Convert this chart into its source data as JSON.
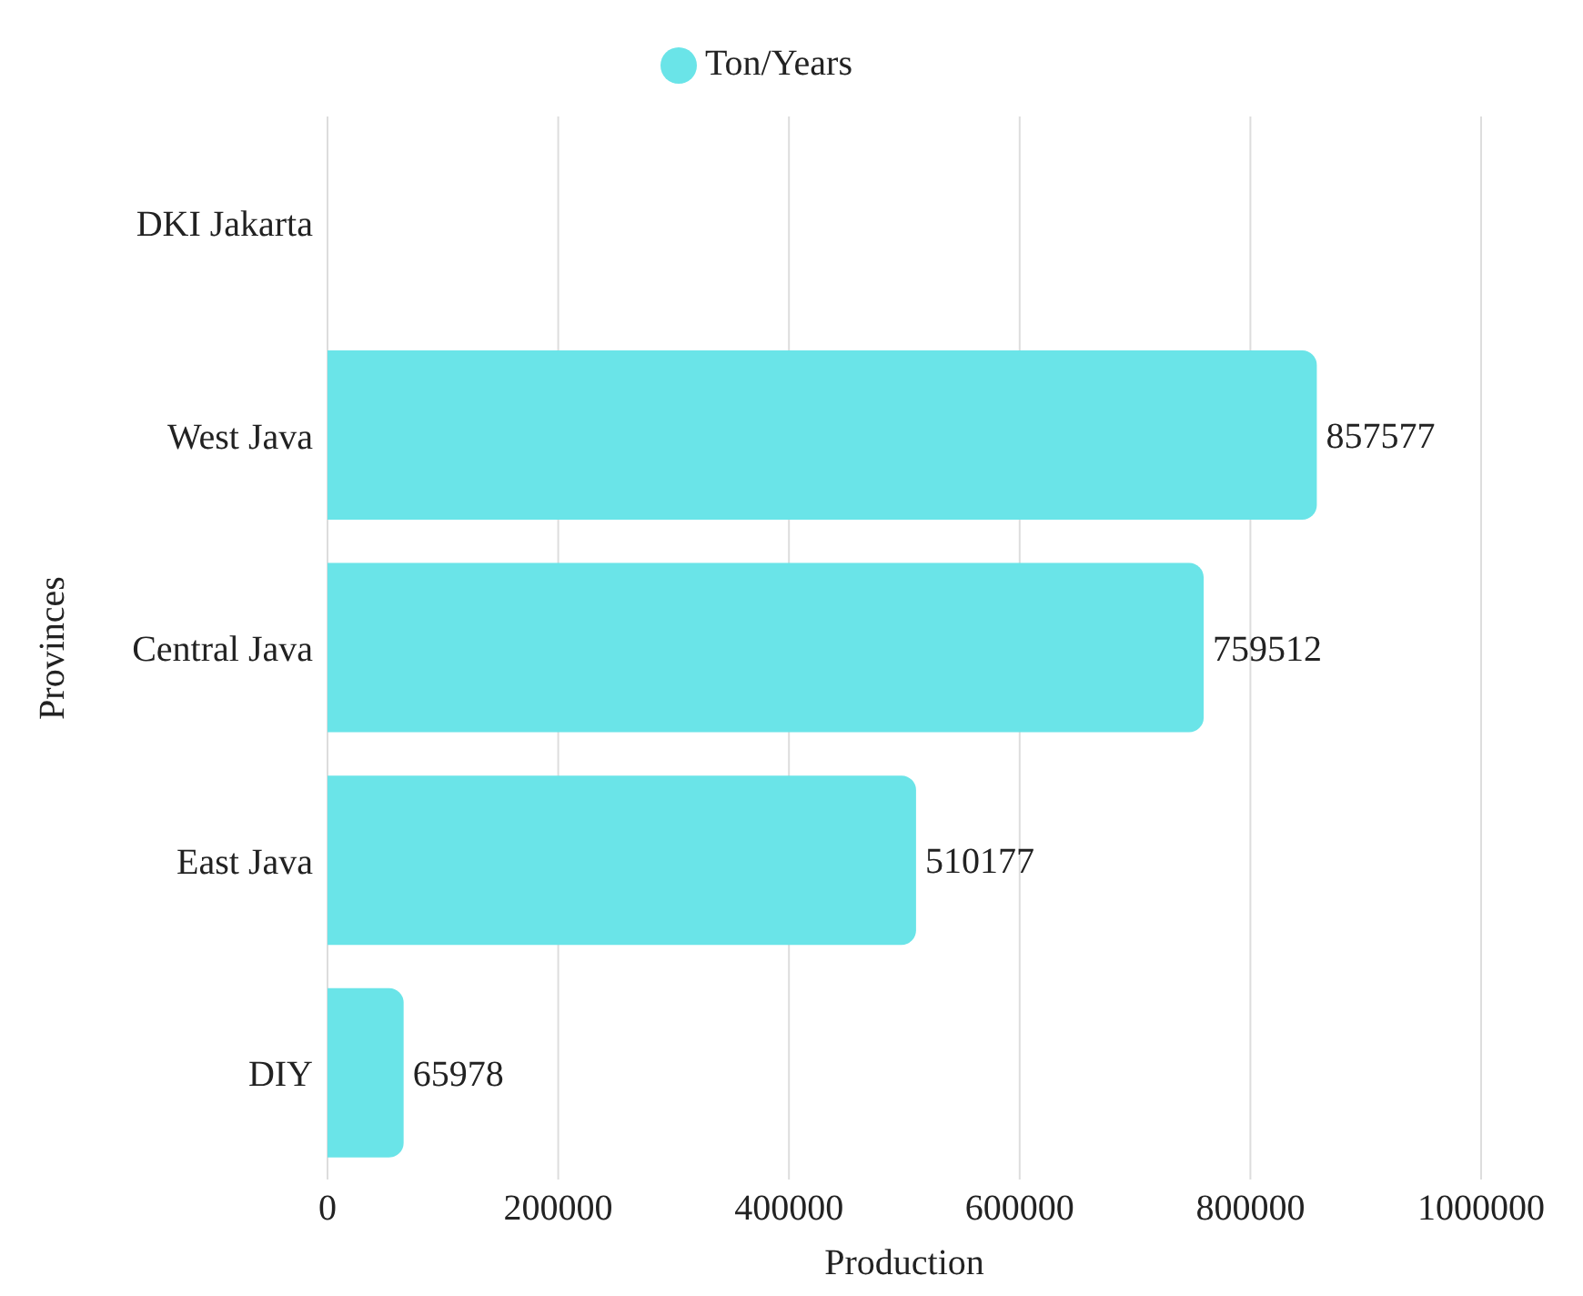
{
  "chart_data": {
    "type": "bar",
    "orientation": "horizontal",
    "xlabel": "Production",
    "ylabel": "Provinces",
    "categories": [
      "DKI Jakarta",
      "West Java",
      "Central Java",
      "East Java",
      "DIY"
    ],
    "series": [
      {
        "name": "Ton/Years",
        "color": "#6ae4e8",
        "values": [
          null,
          857577,
          759512,
          510177,
          65978
        ]
      }
    ],
    "xlim": [
      0,
      1000000
    ],
    "xticks": [
      0,
      200000,
      400000,
      600000,
      800000,
      1000000
    ],
    "grid": "x",
    "legend": "top",
    "data_labels": true
  }
}
